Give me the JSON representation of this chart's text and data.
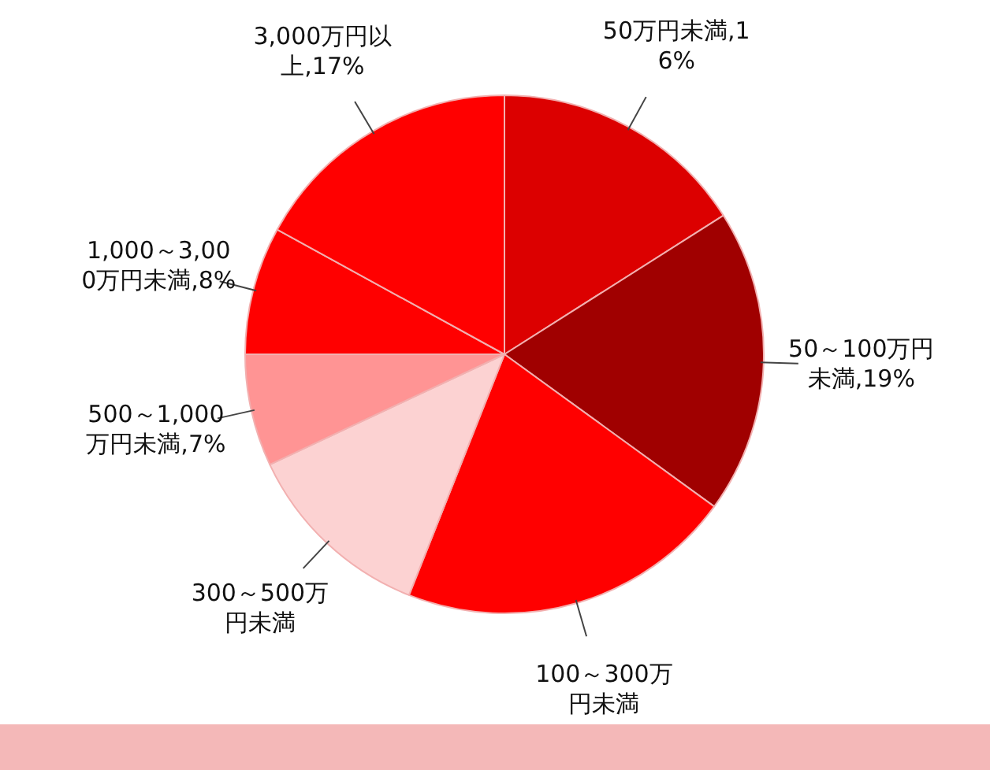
{
  "chart_data": {
    "type": "pie",
    "categories": [
      "50万円未満",
      "50～100万円未満",
      "100～300万円未満",
      "300～500万円未満",
      "500～1,000万円未満",
      "1,000～3,000万円未満",
      "3,000万円以上"
    ],
    "values": [
      16,
      19,
      21,
      12,
      7,
      8,
      17
    ],
    "value_labels": [
      ",16%",
      ",19%",
      null,
      null,
      ",7%",
      ",8%",
      ",17%"
    ],
    "colors": [
      "#dc0000",
      "#a00000",
      "#ff0000",
      "#fcd2d2",
      "#ff9494",
      "#ff0000",
      "#ff0000"
    ],
    "legend": false
  }
}
